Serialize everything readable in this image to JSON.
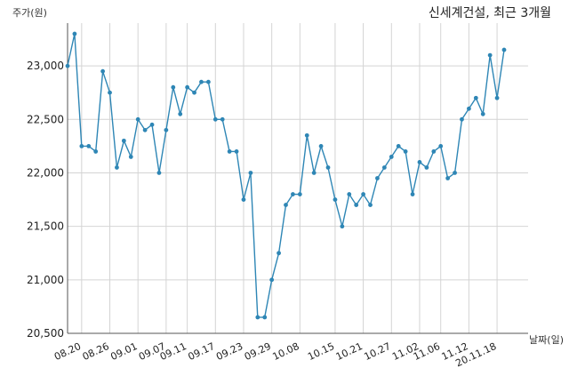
{
  "chart_data": {
    "type": "line",
    "title": "신세계건설, 최근 3개월",
    "ylabel": "주가(원)",
    "xlabel": "날짜(일)",
    "ylim": [
      20500,
      23400
    ],
    "yticks": [
      20500,
      21000,
      21500,
      22000,
      22500,
      23000
    ],
    "ytick_labels": [
      "20,500",
      "21,000",
      "21,500",
      "22,000",
      "22,500",
      "23,000"
    ],
    "xtick_labels": [
      "08.20",
      "08.26",
      "09.01",
      "09.07",
      "09.11",
      "09.17",
      "09.23",
      "09.29",
      "10.08",
      "10.15",
      "10.21",
      "10.27",
      "11.02",
      "11.06",
      "11.12",
      "20.11.18"
    ],
    "xtick_index": [
      2,
      6,
      10,
      14,
      17,
      21,
      25,
      29,
      33,
      38,
      42,
      46,
      50,
      53,
      57,
      61
    ],
    "grid": true,
    "line_color": "#2e86b5",
    "series": [
      {
        "values": [
          23000,
          23300,
          22250,
          22250,
          22200,
          22950,
          22750,
          22050,
          22300,
          22150,
          22500,
          22400,
          22450,
          22000,
          22400,
          22800,
          22550,
          22800,
          22750,
          22850,
          22850,
          22500,
          22500,
          22200,
          22200,
          21750,
          22000,
          20650,
          20650,
          21000,
          21250,
          21700,
          21800,
          21800,
          22350,
          22000,
          22250,
          22050,
          21750,
          21500,
          21800,
          21700,
          21800,
          21700,
          21950,
          22050,
          22150,
          22250,
          22200,
          21800,
          22100,
          22050,
          22200,
          22250,
          21950,
          22000,
          22500,
          22600,
          22700,
          22550,
          23100,
          22700,
          23150
        ]
      }
    ]
  }
}
